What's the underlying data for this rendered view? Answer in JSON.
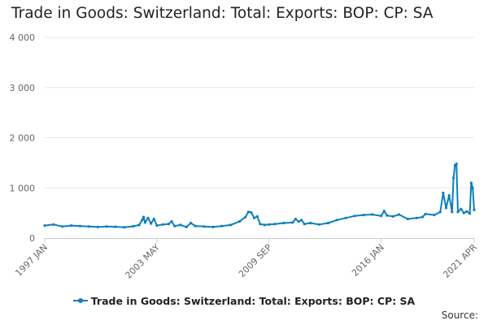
{
  "title": "Trade in Goods: Switzerland: Total: Exports: BOP: CP: SA",
  "source_label": "Source:",
  "colors": {
    "series": "#0d7fbd",
    "grid": "#e6e6e6",
    "axis": "#cccccc"
  },
  "chart_data": {
    "type": "line",
    "title": "Trade in Goods: Switzerland: Total: Exports: BOP: CP: SA",
    "xlabel": "",
    "ylabel": "",
    "ylim": [
      0,
      4000
    ],
    "y_ticks": [
      0,
      1000,
      2000,
      3000,
      4000
    ],
    "y_tick_labels": [
      "0",
      "1 000",
      "2 000",
      "3 000",
      "4 000"
    ],
    "x_range": [
      "1997-01",
      "2021-04"
    ],
    "x_ticks": [
      {
        "date": "1997-01",
        "label": "1997 JAN"
      },
      {
        "date": "2003-05",
        "label": "2003 MAY"
      },
      {
        "date": "2009-09",
        "label": "2009 SEP"
      },
      {
        "date": "2016-01",
        "label": "2016 JAN"
      },
      {
        "date": "2021-04",
        "label": "2021 APR"
      }
    ],
    "grid": "horizontal",
    "legend": "bottom",
    "series": [
      {
        "name": "Trade in Goods: Switzerland: Total: Exports: BOP: CP: SA",
        "points": [
          [
            "1997-01",
            250
          ],
          [
            "1997-07",
            270
          ],
          [
            "1998-01",
            230
          ],
          [
            "1998-07",
            250
          ],
          [
            "1999-01",
            240
          ],
          [
            "1999-07",
            230
          ],
          [
            "2000-01",
            220
          ],
          [
            "2000-07",
            230
          ],
          [
            "2001-01",
            225
          ],
          [
            "2001-07",
            215
          ],
          [
            "2002-01",
            235
          ],
          [
            "2002-05",
            260
          ],
          [
            "2002-07",
            360
          ],
          [
            "2002-08",
            420
          ],
          [
            "2002-09",
            310
          ],
          [
            "2002-11",
            400
          ],
          [
            "2003-01",
            290
          ],
          [
            "2003-03",
            380
          ],
          [
            "2003-05",
            250
          ],
          [
            "2003-09",
            270
          ],
          [
            "2004-01",
            280
          ],
          [
            "2004-03",
            330
          ],
          [
            "2004-05",
            240
          ],
          [
            "2004-09",
            260
          ],
          [
            "2005-01",
            220
          ],
          [
            "2005-04",
            300
          ],
          [
            "2005-07",
            240
          ],
          [
            "2006-01",
            230
          ],
          [
            "2006-07",
            220
          ],
          [
            "2007-01",
            240
          ],
          [
            "2007-07",
            260
          ],
          [
            "2008-01",
            330
          ],
          [
            "2008-05",
            420
          ],
          [
            "2008-07",
            520
          ],
          [
            "2008-09",
            510
          ],
          [
            "2008-11",
            400
          ],
          [
            "2009-01",
            430
          ],
          [
            "2009-03",
            280
          ],
          [
            "2009-06",
            260
          ],
          [
            "2009-09",
            270
          ],
          [
            "2010-01",
            280
          ],
          [
            "2010-07",
            300
          ],
          [
            "2011-01",
            310
          ],
          [
            "2011-03",
            380
          ],
          [
            "2011-05",
            330
          ],
          [
            "2011-07",
            360
          ],
          [
            "2011-09",
            280
          ],
          [
            "2012-01",
            300
          ],
          [
            "2012-07",
            270
          ],
          [
            "2013-01",
            300
          ],
          [
            "2013-07",
            360
          ],
          [
            "2014-01",
            400
          ],
          [
            "2014-07",
            440
          ],
          [
            "2015-01",
            460
          ],
          [
            "2015-07",
            470
          ],
          [
            "2016-01",
            440
          ],
          [
            "2016-03",
            540
          ],
          [
            "2016-05",
            450
          ],
          [
            "2016-09",
            430
          ],
          [
            "2017-01",
            470
          ],
          [
            "2017-07",
            380
          ],
          [
            "2018-01",
            400
          ],
          [
            "2018-05",
            420
          ],
          [
            "2018-07",
            480
          ],
          [
            "2019-01",
            460
          ],
          [
            "2019-05",
            520
          ],
          [
            "2019-07",
            900
          ],
          [
            "2019-09",
            600
          ],
          [
            "2019-11",
            850
          ],
          [
            "2020-01",
            520
          ],
          [
            "2020-02",
            1200
          ],
          [
            "2020-03",
            1450
          ],
          [
            "2020-04",
            1480
          ],
          [
            "2020-05",
            520
          ],
          [
            "2020-07",
            580
          ],
          [
            "2020-09",
            500
          ],
          [
            "2020-11",
            530
          ],
          [
            "2021-01",
            490
          ],
          [
            "2021-02",
            1100
          ],
          [
            "2021-03",
            1000
          ],
          [
            "2021-04",
            560
          ]
        ]
      }
    ]
  }
}
